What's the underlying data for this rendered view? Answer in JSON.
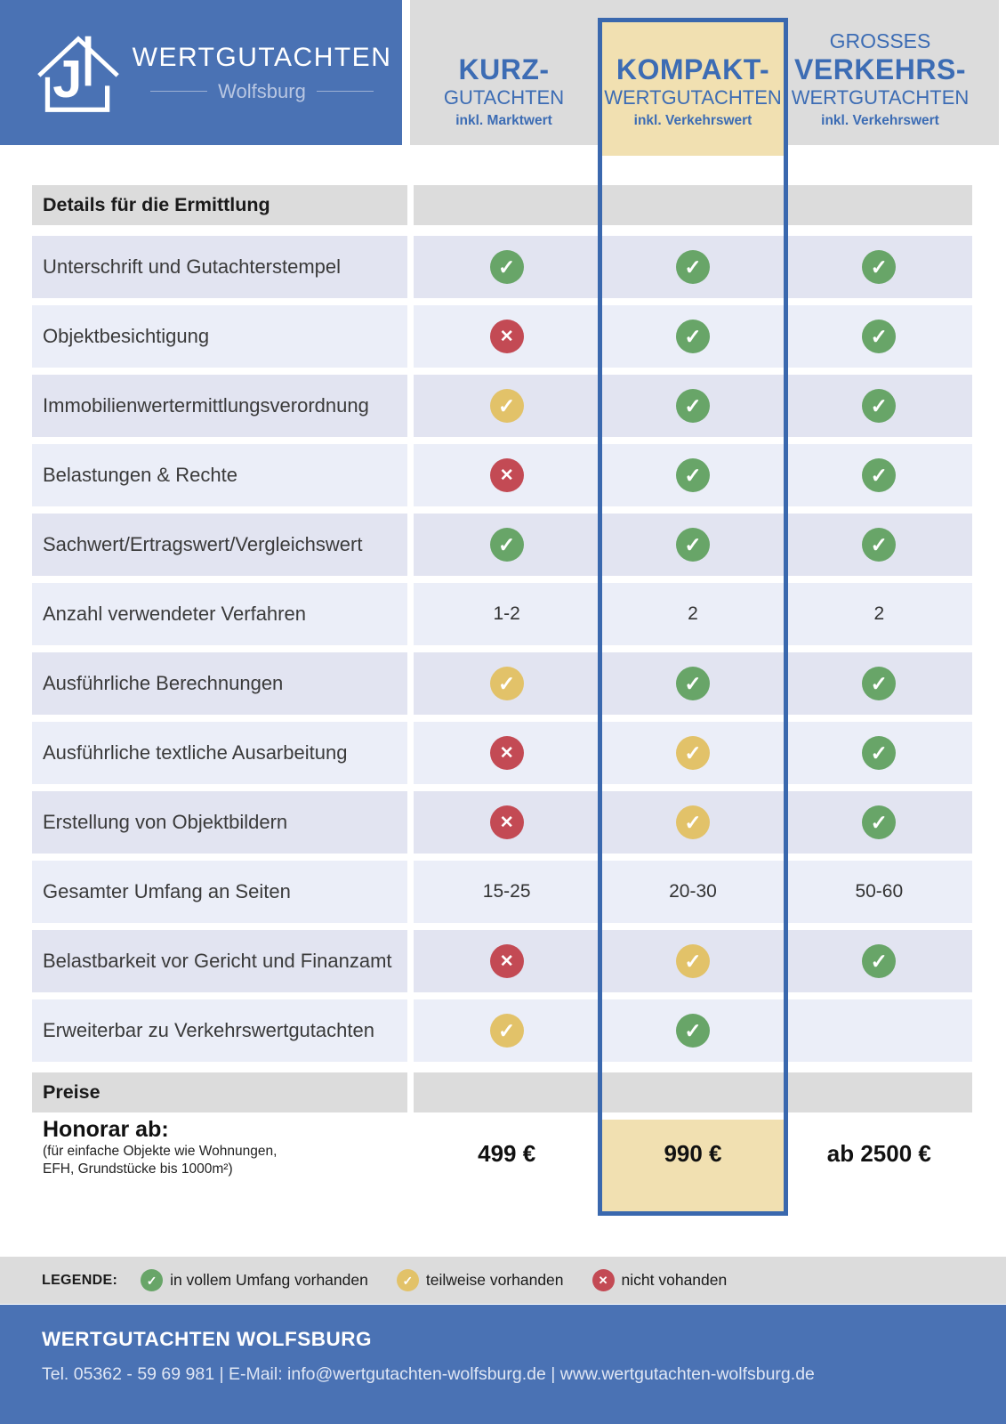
{
  "brand": {
    "name": "WERTGUTACHTEN",
    "city": "Wolfsburg"
  },
  "columns": [
    {
      "title": "KURZ-",
      "subtitle": "GUTACHTEN",
      "note": "inkl. Marktwert",
      "highlighted": false
    },
    {
      "title": "KOMPAKT-",
      "subtitle": "WERTGUTACHTEN",
      "note": "inkl. Verkehrswert",
      "highlighted": true
    },
    {
      "pretitle": "GROSSES",
      "title": "VERKEHRS-",
      "subtitle": "WERTGUTACHTEN",
      "note": "inkl. Verkehrswert",
      "highlighted": false
    }
  ],
  "sections": {
    "details": "Details für die Ermittlung",
    "preise": "Preise"
  },
  "rows": [
    {
      "label": "Unterschrift und Gutachterstempel",
      "values": [
        "yes",
        "yes",
        "yes"
      ]
    },
    {
      "label": "Objektbesichtigung",
      "values": [
        "no",
        "yes",
        "yes"
      ]
    },
    {
      "label": "Immobilienwertermittlungsverordnung",
      "values": [
        "partial",
        "yes",
        "yes"
      ]
    },
    {
      "label": "Belastungen & Rechte",
      "values": [
        "no",
        "yes",
        "yes"
      ]
    },
    {
      "label": "Sachwert/Ertragswert/Vergleichswert",
      "values": [
        "yes",
        "yes",
        "yes"
      ]
    },
    {
      "label": "Anzahl verwendeter Verfahren",
      "values": [
        "1-2",
        "2",
        "2"
      ]
    },
    {
      "label": "Ausführliche Berechnungen",
      "values": [
        "partial",
        "yes",
        "yes"
      ]
    },
    {
      "label": "Ausführliche textliche Ausarbeitung",
      "values": [
        "no",
        "partial",
        "yes"
      ]
    },
    {
      "label": "Erstellung von Objektbildern",
      "values": [
        "no",
        "partial",
        "yes"
      ]
    },
    {
      "label": "Gesamter Umfang an Seiten",
      "values": [
        "15-25",
        "20-30",
        "50-60"
      ]
    },
    {
      "label": "Belastbarkeit vor Gericht und Finanzamt",
      "values": [
        "no",
        "partial",
        "yes"
      ]
    },
    {
      "label": "Erweiterbar zu Verkehrswertgutachten",
      "values": [
        "partial",
        "yes",
        "none"
      ]
    }
  ],
  "pricing": {
    "label": "Honorar ab:",
    "note_lines": [
      "(für einfache Objekte wie Wohnungen,",
      "EFH, Grundstücke bis 1000m²)"
    ],
    "values": [
      "499 €",
      "990 €",
      "ab 2500 €"
    ]
  },
  "legend": {
    "title": "LEGENDE:",
    "items": [
      {
        "icon": "yes",
        "label": "in vollem Umfang vorhanden"
      },
      {
        "icon": "partial",
        "label": "teilweise vorhanden"
      },
      {
        "icon": "no",
        "label": "nicht vohanden"
      }
    ]
  },
  "footer": {
    "company": "WERTGUTACHTEN WOLFSBURG",
    "contact": "Tel. 05362 - 59 69 981  |  E-Mail: info@wertgutachten-wolfsburg.de  |  www.wertgutachten-wolfsburg.de"
  },
  "colors": {
    "banner_blue": "#4a72b4",
    "highlight_border": "#3a68ae",
    "highlight_beige": "#f1e0b1",
    "heading_blue": "#3c6cb4",
    "band_gray": "#dcdcdc",
    "row_lavender_dark": "#e2e4f1",
    "row_lavender_light": "#ebeef8",
    "icon_green": "#68a568",
    "icon_yellow": "#e2c269",
    "icon_red": "#c34a54"
  }
}
